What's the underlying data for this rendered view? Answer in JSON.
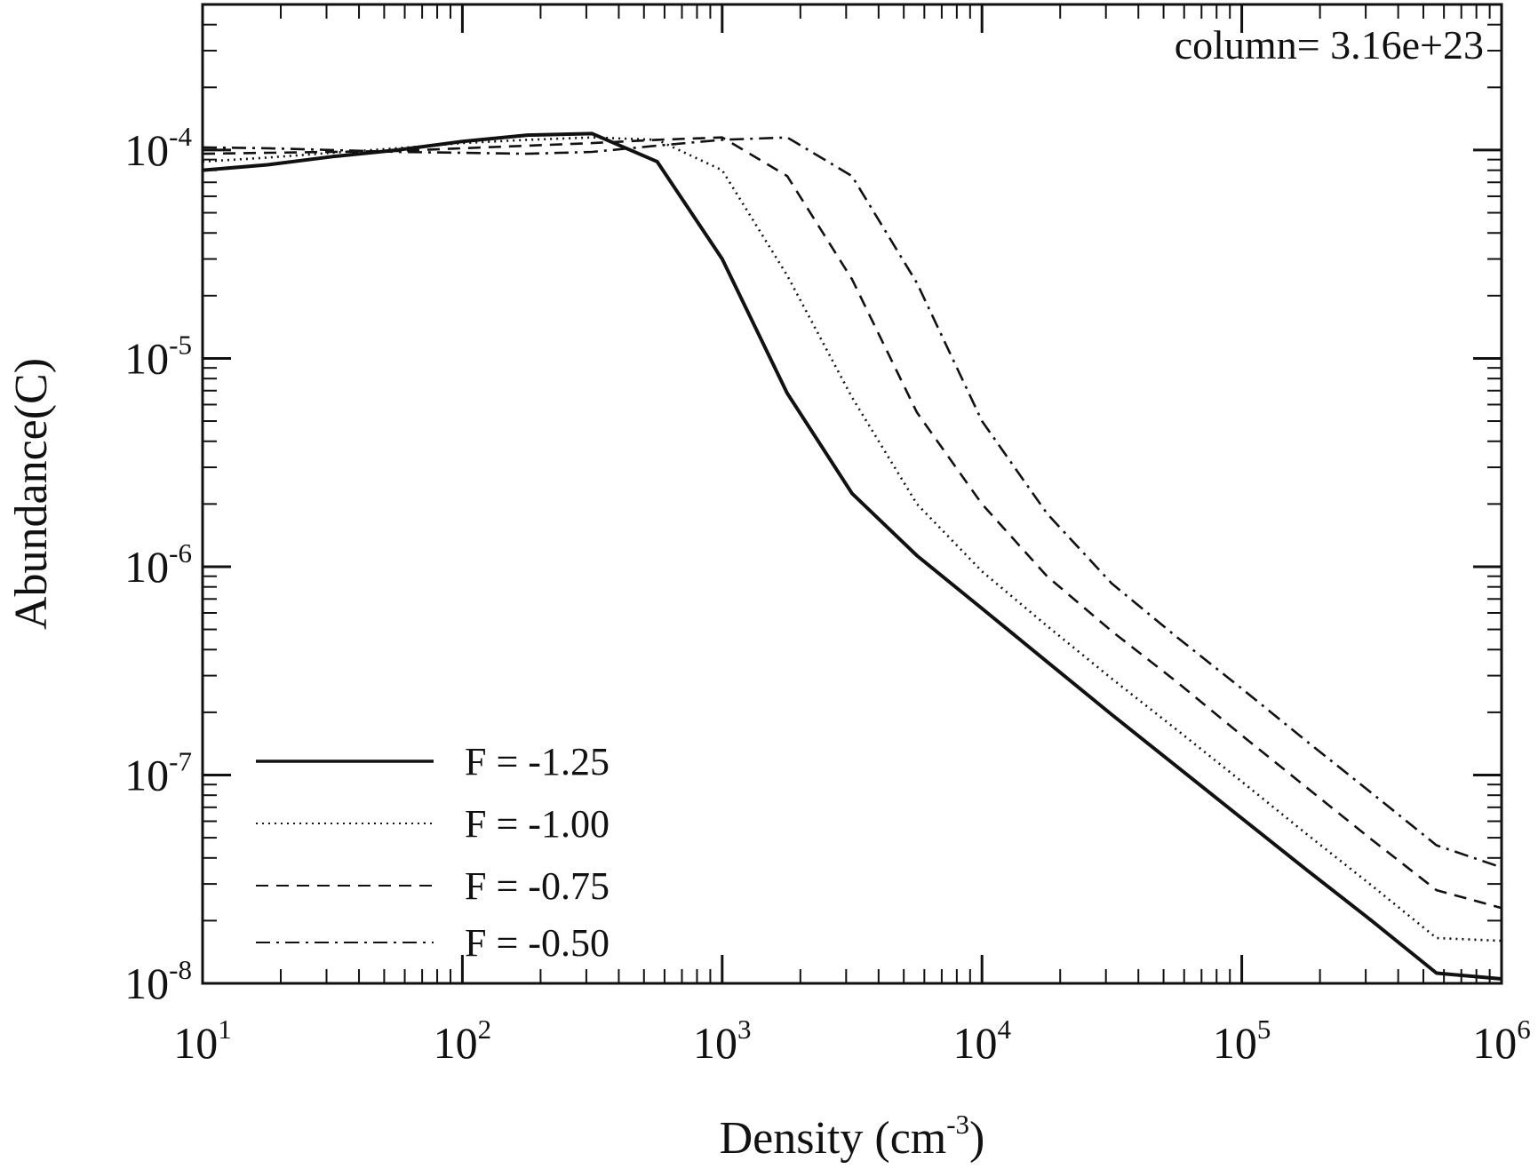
{
  "chart_data": {
    "type": "line",
    "x_scale": "log",
    "y_scale": "log",
    "xlim": [
      10,
      1000000
    ],
    "ylim": [
      1e-08,
      0.0005
    ],
    "xlabel": {
      "text": "Density (cm",
      "sup": "-3",
      "suffix": ")"
    },
    "ylabel": "Abundance(C)",
    "annotation": "column= 3.16e+23",
    "annotation_position": "top-right",
    "legend_position": "bottom-left",
    "grid": false,
    "x_ticks": [
      {
        "value": 10,
        "base": "10",
        "exp": "1"
      },
      {
        "value": 100,
        "base": "10",
        "exp": "2"
      },
      {
        "value": 1000,
        "base": "10",
        "exp": "3"
      },
      {
        "value": 10000,
        "base": "10",
        "exp": "4"
      },
      {
        "value": 100000,
        "base": "10",
        "exp": "5"
      },
      {
        "value": 1000000,
        "base": "10",
        "exp": "6"
      }
    ],
    "y_ticks": [
      {
        "value": 1e-08,
        "base": "10",
        "exp": "-8"
      },
      {
        "value": 1e-07,
        "base": "10",
        "exp": "-7"
      },
      {
        "value": 1e-06,
        "base": "10",
        "exp": "-6"
      },
      {
        "value": 1e-05,
        "base": "10",
        "exp": "-5"
      },
      {
        "value": 0.0001,
        "base": "10",
        "exp": "-4"
      }
    ],
    "series": [
      {
        "name": "F = -1.25",
        "style": "solid",
        "color": "#111111",
        "x": [
          10,
          17.8,
          31.6,
          56.2,
          100,
          178,
          316,
          562,
          1000,
          1780,
          3160,
          5620,
          10000,
          17800,
          31600,
          56200,
          100000,
          178000,
          316000,
          562000,
          1000000
        ],
        "y": [
          8e-05,
          8.5e-05,
          9.3e-05,
          0.0001,
          0.00011,
          0.000118,
          0.00012,
          8.8e-05,
          3e-05,
          6.8e-06,
          2.25e-06,
          1.13e-06,
          6.3e-07,
          3.5e-07,
          1.95e-07,
          1.1e-07,
          6.2e-08,
          3.5e-08,
          2e-08,
          1.12e-08,
          1.05e-08
        ]
      },
      {
        "name": "F = -1.00",
        "style": "dotted",
        "color": "#111111",
        "x": [
          10,
          17.8,
          31.6,
          56.2,
          100,
          178,
          316,
          562,
          1000,
          1780,
          3160,
          5620,
          10000,
          17800,
          31600,
          56200,
          100000,
          178000,
          316000,
          562000,
          1000000
        ],
        "y": [
          8.8e-05,
          9.2e-05,
          9.7e-05,
          0.000102,
          0.000108,
          0.000112,
          0.000115,
          0.000112,
          8e-05,
          2.5e-05,
          6.5e-06,
          2e-06,
          9.5e-07,
          5.2e-07,
          2.9e-07,
          1.65e-07,
          9.3e-08,
          5.2e-08,
          2.95e-08,
          1.65e-08,
          1.6e-08
        ]
      },
      {
        "name": "F = -0.75",
        "style": "dashed",
        "color": "#111111",
        "x": [
          10,
          17.8,
          31.6,
          56.2,
          100,
          178,
          316,
          562,
          1000,
          1780,
          3160,
          5620,
          10000,
          17800,
          31600,
          56200,
          100000,
          178000,
          316000,
          562000,
          1000000
        ],
        "y": [
          9.6e-05,
          9.7e-05,
          9.8e-05,
          9.9e-05,
          0.000102,
          0.000105,
          0.000108,
          0.000112,
          0.000115,
          7.5e-05,
          2.4e-05,
          5.5e-06,
          2e-06,
          9e-07,
          4.9e-07,
          2.8e-07,
          1.55e-07,
          8.7e-08,
          4.9e-08,
          2.8e-08,
          2.3e-08
        ]
      },
      {
        "name": "F = -0.50",
        "style": "dashdot",
        "color": "#111111",
        "x": [
          10,
          17.8,
          31.6,
          56.2,
          100,
          178,
          316,
          562,
          1000,
          1780,
          3160,
          5620,
          10000,
          17800,
          31600,
          56200,
          100000,
          178000,
          316000,
          562000,
          1000000
        ],
        "y": [
          0.000103,
          0.000102,
          0.0001,
          9.8e-05,
          9.7e-05,
          9.6e-05,
          9.8e-05,
          0.000105,
          0.000112,
          0.000115,
          7.5e-05,
          2.3e-05,
          5e-06,
          1.8e-06,
          8.3e-07,
          4.6e-07,
          2.6e-07,
          1.45e-07,
          8.2e-08,
          4.6e-08,
          3.6e-08
        ]
      }
    ]
  }
}
